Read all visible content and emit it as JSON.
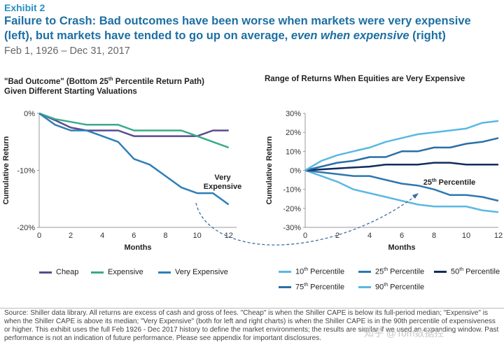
{
  "header": {
    "exhibit": "Exhibit 2",
    "title_part1": "Failure to Crash: Bad outcomes have been worse when markets were very expensive (left), but markets have tended to go up on average, ",
    "title_italic": "even when expensive",
    "title_part2": " (right)",
    "date_range": "Feb 1, 1926 – Dec 31, 2017"
  },
  "left_chart": {
    "title_line1_a": "\"Bad Outcome\" (Bottom 25",
    "title_sup": "th",
    "title_line1_b": " Percentile Return Path)",
    "title_line2": "Given Different Starting Valuations"
  },
  "right_chart": {
    "title": "Range of Returns When Equities are Very Expensive"
  },
  "footnote": "Source: Shiller data library. All returns are excess of cash and gross of fees. \"Cheap\" is when the Shiller CAPE is below its full-period median; \"Expensive\" is when the Shiller CAPE is above its median; \"Very Expensive\" (both for left and right charts) is when the Shiller CAPE is in the 90th percentile of expensiveness or higher. This exhibit uses the full Feb 1926 - Dec 2017 history to define the market environments; the results are similar if we used an expanding window. Past performance is not an indication of future performance. Please see appendix for important disclosures.",
  "watermark": "知乎 @Tom数据控",
  "chart_data": [
    {
      "type": "line",
      "title": "\"Bad Outcome\" (Bottom 25th Percentile Return Path) Given Different Starting Valuations",
      "xlabel": "Months",
      "ylabel": "Cumulative Return",
      "xlim": [
        0,
        12.5
      ],
      "ylim": [
        -20,
        0
      ],
      "x_ticks": [
        0,
        2,
        4,
        6,
        8,
        10,
        12
      ],
      "y_ticks": [
        0,
        -10,
        -20
      ],
      "y_tick_labels": [
        "0%",
        "-10%",
        "-20%"
      ],
      "x": [
        0,
        1,
        2,
        3,
        4,
        5,
        6,
        7,
        8,
        9,
        10,
        11,
        12
      ],
      "series": [
        {
          "name": "Cheap",
          "color": "#5b4a8e",
          "values": [
            0,
            -1.2,
            -2.5,
            -3,
            -3,
            -3,
            -4,
            -4,
            -4,
            -4,
            -4,
            -3,
            -3
          ]
        },
        {
          "name": "Expensive",
          "color": "#3aaa8c",
          "values": [
            0,
            -1,
            -1.5,
            -2,
            -2,
            -2,
            -3,
            -3,
            -3,
            -3,
            -4,
            -5,
            -6
          ]
        },
        {
          "name": "Very Expensive",
          "color": "#2d7fb8",
          "values": [
            0,
            -2,
            -3,
            -3,
            -4,
            -5,
            -8,
            -9,
            -11,
            -13,
            -14,
            -14,
            -16
          ]
        }
      ],
      "annotation": {
        "text_line1": "Very",
        "text_line2": "Expensive"
      },
      "legend_position": "bottom"
    },
    {
      "type": "line",
      "title": "Range of Returns When Equities are Very Expensive",
      "xlabel": "Months",
      "ylabel": "Cumulative Return",
      "xlim": [
        0,
        12
      ],
      "ylim": [
        -30,
        30
      ],
      "x_ticks": [
        0,
        2,
        4,
        6,
        8,
        10,
        12
      ],
      "y_ticks": [
        30,
        20,
        10,
        0,
        -10,
        -20,
        -30
      ],
      "y_tick_labels": [
        "30%",
        "20%",
        "10%",
        "0%",
        "-10%",
        "-20%",
        "-30%"
      ],
      "x": [
        0,
        1,
        2,
        3,
        4,
        5,
        6,
        7,
        8,
        9,
        10,
        11,
        12
      ],
      "series": [
        {
          "name": "10th Percentile",
          "label_base": "10",
          "label_sup": "th",
          "label_rest": " Percentile",
          "color": "#5bb8e2",
          "values": [
            0,
            -3,
            -6,
            -10,
            -12,
            -14,
            -16,
            -18,
            -19,
            -19,
            -19,
            -21,
            -22
          ]
        },
        {
          "name": "25th Percentile",
          "label_base": "25",
          "label_sup": "th",
          "label_rest": " Percentile",
          "color": "#2f77b0",
          "values": [
            0,
            -1,
            -2,
            -3,
            -3,
            -5,
            -7,
            -8,
            -10,
            -13,
            -13,
            -14,
            -16
          ]
        },
        {
          "name": "50th Percentile",
          "label_base": "50",
          "label_sup": "th",
          "label_rest": " Percentile",
          "color": "#0f2d5e",
          "values": [
            0,
            0.5,
            1,
            1.5,
            2,
            3,
            3,
            3,
            4,
            4,
            3,
            3,
            3
          ]
        },
        {
          "name": "75th Percentile",
          "label_base": "75",
          "label_sup": "th",
          "label_rest": " Percentile",
          "color": "#2a6fa8",
          "values": [
            0,
            2,
            4,
            5,
            7,
            7,
            10,
            10,
            12,
            12,
            14,
            15,
            17
          ]
        },
        {
          "name": "90th Percentile",
          "label_base": "90",
          "label_sup": "th",
          "label_rest": " Percentile",
          "color": "#5bb8e2",
          "values": [
            0,
            5,
            8,
            10,
            12,
            15,
            17,
            19,
            20,
            21,
            22,
            25,
            26
          ]
        }
      ],
      "annotation": {
        "text_base": "25",
        "text_sup": "th",
        "text_rest": " Percentile"
      },
      "legend_position": "bottom"
    }
  ]
}
